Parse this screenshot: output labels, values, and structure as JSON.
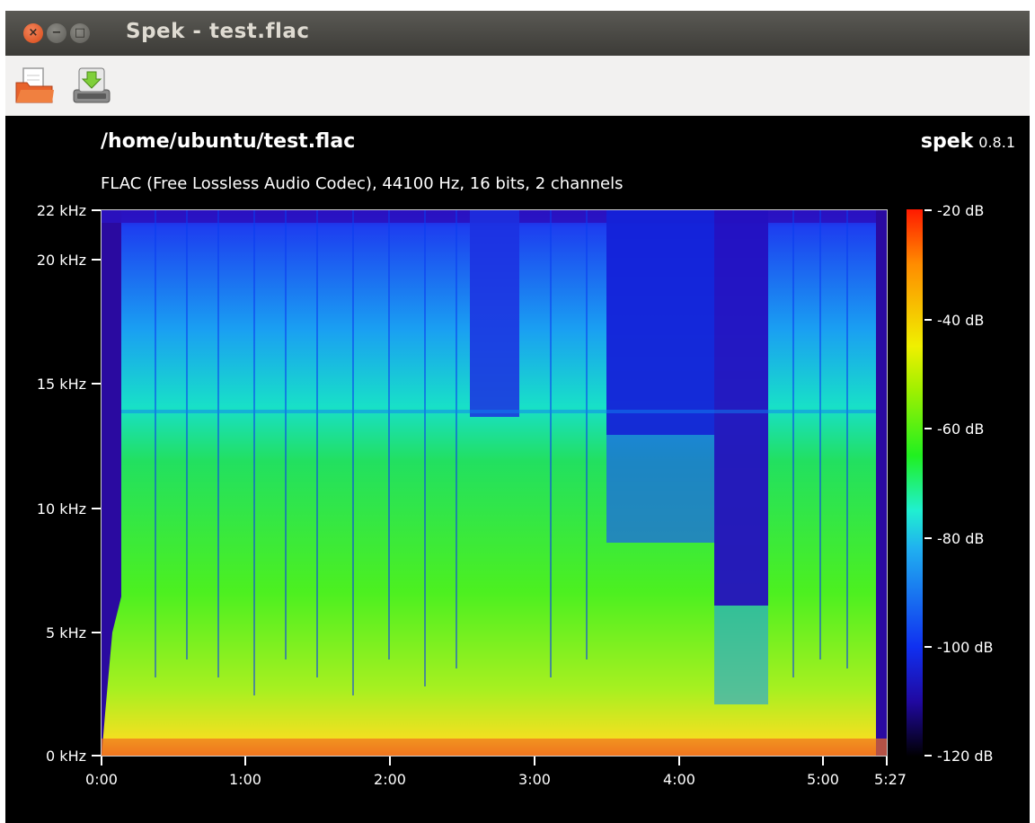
{
  "window": {
    "title": "Spek - test.flac",
    "close_glyph": "×",
    "minimize_glyph": "−",
    "maximize_glyph": "□"
  },
  "toolbar": {
    "open_icon": "folder-open-icon",
    "save_icon": "save-icon"
  },
  "header": {
    "file_path": "/home/ubuntu/test.flac",
    "file_info": "FLAC (Free Lossless Audio Codec), 44100 Hz, 16 bits, 2 channels",
    "brand": "spek",
    "version": "0.8.1"
  },
  "axes": {
    "y_labels": [
      "22 kHz",
      "20 kHz",
      "15 kHz",
      "10 kHz",
      "5 kHz",
      "0 kHz"
    ],
    "x_labels": [
      "0:00",
      "1:00",
      "2:00",
      "3:00",
      "4:00",
      "5:00",
      "5:27"
    ],
    "db_labels": [
      "-20 dB",
      "-40 dB",
      "-60 dB",
      "-80 dB",
      "-100 dB",
      "-120 dB"
    ]
  },
  "colors": {
    "background": "#000000",
    "titlebar": "#3c3b37",
    "toolbar": "#f2f1f0",
    "close_button": "#e05a25"
  }
}
